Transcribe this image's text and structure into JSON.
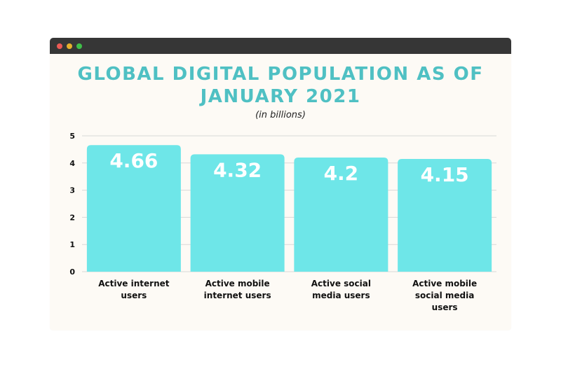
{
  "window": {
    "controls": [
      {
        "name": "close",
        "color": "#ec5a55"
      },
      {
        "name": "minimize",
        "color": "#e6b12b"
      },
      {
        "name": "maximize",
        "color": "#3fbf49"
      }
    ]
  },
  "chart_data": {
    "type": "bar",
    "title_lines": [
      "GLOBAL DIGITAL POPULATION AS OF",
      "JANUARY 2021"
    ],
    "subtitle": "(in billions)",
    "categories": [
      [
        "Active internet",
        "users"
      ],
      [
        "Active mobile",
        "internet users"
      ],
      [
        "Active social",
        "media users"
      ],
      [
        "Active mobile",
        "social media",
        "users"
      ]
    ],
    "values": [
      4.66,
      4.32,
      4.2,
      4.15
    ],
    "value_labels": [
      "4.66",
      "4.32",
      "4.2",
      "4.15"
    ],
    "ylim": [
      0,
      5
    ],
    "yticks": [
      0,
      1,
      2,
      3,
      4,
      5
    ],
    "grid": true,
    "bar_color": "#6ee6e8",
    "title_color": "#4fc0c3"
  }
}
